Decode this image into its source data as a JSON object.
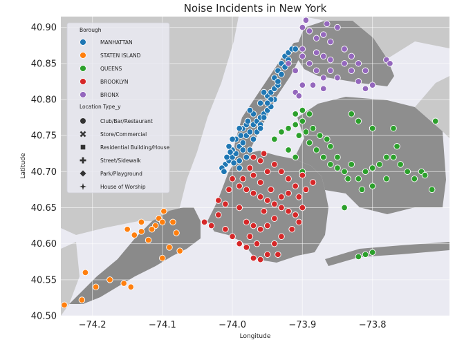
{
  "chart_data": {
    "type": "scatter",
    "title": "Noise Incidents in New York",
    "xlabel": "Longitude",
    "ylabel": "Latitude",
    "xlim": [
      -74.245,
      -73.69
    ],
    "ylim": [
      40.5,
      40.915
    ],
    "x_ticks": [
      -74.2,
      -74.1,
      -74.0,
      -73.9,
      -73.8
    ],
    "x_tick_labels": [
      "−74.2",
      "−74.1",
      "−74.0",
      "−73.9",
      "−73.8"
    ],
    "y_ticks": [
      40.5,
      40.55,
      40.6,
      40.65,
      40.7,
      40.75,
      40.8,
      40.85,
      40.9
    ],
    "y_tick_labels": [
      "40.50",
      "40.55",
      "40.60",
      "40.65",
      "40.70",
      "40.75",
      "40.80",
      "40.85",
      "40.90"
    ],
    "grid": true,
    "background": "map of New York City boroughs",
    "legend": {
      "placement": "top-left",
      "hue_title": "Borough",
      "style_title": "Location Type_y",
      "hue_items": [
        {
          "label": "MANHATTAN",
          "color": "#1f77b4"
        },
        {
          "label": "STATEN ISLAND",
          "color": "#ff7f0e"
        },
        {
          "label": "QUEENS",
          "color": "#2ca02c"
        },
        {
          "label": "BROOKLYN",
          "color": "#d62728"
        },
        {
          "label": "BRONX",
          "color": "#9467bd"
        }
      ],
      "style_items": [
        {
          "label": "Club/Bar/Restaurant",
          "marker": "circle"
        },
        {
          "label": "Store/Commercial",
          "marker": "x"
        },
        {
          "label": "Residential Building/House",
          "marker": "square"
        },
        {
          "label": "Street/Sidewalk",
          "marker": "plus"
        },
        {
          "label": "Park/Playground",
          "marker": "diamond"
        },
        {
          "label": "House of Worship",
          "marker": "star"
        }
      ]
    },
    "series": [
      {
        "name": "MANHATTAN",
        "color": "#1f77b4",
        "points": [
          [
            -74.01,
            40.71
          ],
          [
            -74.005,
            40.715
          ],
          [
            -74.0,
            40.72
          ],
          [
            -73.995,
            40.725
          ],
          [
            -74.008,
            40.72
          ],
          [
            -74.0,
            40.73
          ],
          [
            -73.99,
            40.735
          ],
          [
            -73.985,
            40.74
          ],
          [
            -73.995,
            40.745
          ],
          [
            -73.98,
            40.75
          ],
          [
            -73.975,
            40.755
          ],
          [
            -73.985,
            40.76
          ],
          [
            -73.97,
            40.765
          ],
          [
            -73.965,
            40.77
          ],
          [
            -73.96,
            40.775
          ],
          [
            -73.955,
            40.78
          ],
          [
            -73.95,
            40.785
          ],
          [
            -73.945,
            40.79
          ],
          [
            -73.94,
            40.8
          ],
          [
            -73.95,
            40.805
          ],
          [
            -73.945,
            40.81
          ],
          [
            -73.94,
            40.815
          ],
          [
            -73.935,
            40.82
          ],
          [
            -73.94,
            40.83
          ],
          [
            -73.935,
            40.84
          ],
          [
            -73.93,
            40.85
          ],
          [
            -73.925,
            40.86
          ],
          [
            -73.92,
            40.865
          ],
          [
            -73.915,
            40.87
          ],
          [
            -73.91,
            40.87
          ],
          [
            -74.015,
            40.705
          ],
          [
            -74.012,
            40.7
          ],
          [
            -73.99,
            40.715
          ],
          [
            -73.98,
            40.72
          ],
          [
            -73.975,
            40.73
          ],
          [
            -73.98,
            40.765
          ],
          [
            -73.99,
            40.76
          ],
          [
            -73.96,
            40.765
          ],
          [
            -73.955,
            40.775
          ],
          [
            -73.97,
            40.78
          ],
          [
            -73.975,
            40.785
          ],
          [
            -73.96,
            40.795
          ],
          [
            -73.945,
            40.8
          ],
          [
            -73.955,
            40.81
          ],
          [
            -73.93,
            40.835
          ],
          [
            -73.925,
            40.845
          ],
          [
            -73.92,
            40.855
          ],
          [
            -74.0,
            40.745
          ],
          [
            -74.005,
            40.735
          ],
          [
            -73.985,
            40.73
          ],
          [
            -73.97,
            40.745
          ],
          [
            -73.965,
            40.755
          ],
          [
            -73.96,
            40.76
          ],
          [
            -73.99,
            40.705
          ],
          [
            -73.998,
            40.712
          ],
          [
            -74.003,
            40.727
          ],
          [
            -73.988,
            40.75
          ],
          [
            -73.978,
            40.77
          ],
          [
            -73.95,
            40.795
          ],
          [
            -73.935,
            40.825
          ]
        ]
      },
      {
        "name": "STATEN ISLAND",
        "color": "#ff7f0e",
        "points": [
          [
            -74.24,
            40.515
          ],
          [
            -74.215,
            40.522
          ],
          [
            -74.195,
            40.54
          ],
          [
            -74.175,
            40.55
          ],
          [
            -74.155,
            40.545
          ],
          [
            -74.145,
            40.54
          ],
          [
            -74.21,
            40.56
          ],
          [
            -74.14,
            40.612
          ],
          [
            -74.13,
            40.617
          ],
          [
            -74.11,
            40.625
          ],
          [
            -74.105,
            40.635
          ],
          [
            -74.1,
            40.63
          ],
          [
            -74.085,
            40.63
          ],
          [
            -74.08,
            40.615
          ],
          [
            -74.09,
            40.595
          ],
          [
            -74.1,
            40.58
          ],
          [
            -74.115,
            40.62
          ],
          [
            -74.12,
            40.605
          ],
          [
            -74.13,
            40.63
          ],
          [
            -74.098,
            40.645
          ],
          [
            -74.075,
            40.59
          ],
          [
            -74.15,
            40.62
          ]
        ]
      },
      {
        "name": "QUEENS",
        "color": "#2ca02c",
        "points": [
          [
            -73.94,
            40.745
          ],
          [
            -73.93,
            40.755
          ],
          [
            -73.92,
            40.76
          ],
          [
            -73.91,
            40.765
          ],
          [
            -73.9,
            40.77
          ],
          [
            -73.905,
            40.75
          ],
          [
            -73.895,
            40.755
          ],
          [
            -73.885,
            40.76
          ],
          [
            -73.875,
            40.75
          ],
          [
            -73.865,
            40.745
          ],
          [
            -73.88,
            40.73
          ],
          [
            -73.87,
            40.72
          ],
          [
            -73.86,
            40.71
          ],
          [
            -73.85,
            40.705
          ],
          [
            -73.84,
            40.7
          ],
          [
            -73.83,
            40.71
          ],
          [
            -73.82,
            40.69
          ],
          [
            -73.81,
            40.7
          ],
          [
            -73.8,
            40.705
          ],
          [
            -73.79,
            40.71
          ],
          [
            -73.78,
            40.69
          ],
          [
            -73.77,
            40.72
          ],
          [
            -73.76,
            40.71
          ],
          [
            -73.75,
            40.7
          ],
          [
            -73.74,
            40.69
          ],
          [
            -73.73,
            40.7
          ],
          [
            -73.8,
            40.76
          ],
          [
            -73.82,
            40.77
          ],
          [
            -73.77,
            40.76
          ],
          [
            -73.71,
            40.77
          ],
          [
            -73.83,
            40.78
          ],
          [
            -73.84,
            40.65
          ],
          [
            -73.81,
            40.585
          ],
          [
            -73.8,
            40.588
          ],
          [
            -73.82,
            40.582
          ],
          [
            -73.715,
            40.675
          ],
          [
            -73.9,
            40.7
          ],
          [
            -73.91,
            40.72
          ],
          [
            -73.92,
            40.73
          ],
          [
            -73.89,
            40.74
          ],
          [
            -73.86,
            40.735
          ],
          [
            -73.85,
            40.72
          ],
          [
            -73.835,
            40.69
          ],
          [
            -73.815,
            40.675
          ],
          [
            -73.8,
            40.68
          ],
          [
            -73.78,
            40.72
          ],
          [
            -73.765,
            40.735
          ],
          [
            -73.89,
            40.78
          ],
          [
            -73.9,
            40.785
          ],
          [
            -73.91,
            40.78
          ],
          [
            -73.725,
            40.695
          ]
        ]
      },
      {
        "name": "BROOKLYN",
        "color": "#d62728",
        "points": [
          [
            -74.0,
            40.69
          ],
          [
            -73.99,
            40.68
          ],
          [
            -73.98,
            40.675
          ],
          [
            -73.97,
            40.67
          ],
          [
            -73.96,
            40.665
          ],
          [
            -73.95,
            40.66
          ],
          [
            -73.94,
            40.655
          ],
          [
            -73.93,
            40.65
          ],
          [
            -73.92,
            40.645
          ],
          [
            -73.91,
            40.64
          ],
          [
            -73.9,
            40.65
          ],
          [
            -73.95,
            40.7
          ],
          [
            -73.94,
            40.71
          ],
          [
            -73.96,
            40.715
          ],
          [
            -73.97,
            40.72
          ],
          [
            -73.955,
            40.725
          ],
          [
            -73.93,
            40.7
          ],
          [
            -73.92,
            40.69
          ],
          [
            -73.91,
            40.68
          ],
          [
            -74.02,
            40.64
          ],
          [
            -74.03,
            40.625
          ],
          [
            -74.01,
            40.62
          ],
          [
            -74.0,
            40.61
          ],
          [
            -73.99,
            40.6
          ],
          [
            -73.98,
            40.595
          ],
          [
            -73.97,
            40.58
          ],
          [
            -73.96,
            40.578
          ],
          [
            -73.95,
            40.585
          ],
          [
            -73.94,
            40.6
          ],
          [
            -73.93,
            40.61
          ],
          [
            -74.04,
            40.63
          ],
          [
            -74.02,
            40.66
          ],
          [
            -74.01,
            40.655
          ],
          [
            -73.99,
            40.65
          ],
          [
            -73.98,
            40.63
          ],
          [
            -73.97,
            40.625
          ],
          [
            -73.96,
            40.62
          ],
          [
            -73.95,
            40.625
          ],
          [
            -73.94,
            40.635
          ],
          [
            -73.93,
            40.665
          ],
          [
            -73.92,
            40.67
          ],
          [
            -73.905,
            40.665
          ],
          [
            -73.895,
            40.675
          ],
          [
            -73.885,
            40.685
          ],
          [
            -73.9,
            40.695
          ],
          [
            -73.96,
            40.685
          ],
          [
            -73.97,
            40.695
          ],
          [
            -73.985,
            40.69
          ],
          [
            -73.975,
            40.705
          ],
          [
            -73.945,
            40.675
          ],
          [
            -74.005,
            40.675
          ],
          [
            -73.955,
            40.645
          ],
          [
            -73.965,
            40.6
          ],
          [
            -73.975,
            40.61
          ],
          [
            -73.935,
            40.585
          ],
          [
            -73.915,
            40.62
          ],
          [
            -73.905,
            40.63
          ]
        ]
      },
      {
        "name": "BRONX",
        "color": "#9467bd",
        "points": [
          [
            -73.9,
            40.9
          ],
          [
            -73.89,
            40.895
          ],
          [
            -73.88,
            40.885
          ],
          [
            -73.87,
            40.89
          ],
          [
            -73.86,
            40.88
          ],
          [
            -73.85,
            40.9
          ],
          [
            -73.84,
            40.87
          ],
          [
            -73.83,
            40.86
          ],
          [
            -73.82,
            40.85
          ],
          [
            -73.81,
            40.84
          ],
          [
            -73.8,
            40.82
          ],
          [
            -73.9,
            40.86
          ],
          [
            -73.89,
            40.85
          ],
          [
            -73.88,
            40.84
          ],
          [
            -73.87,
            40.83
          ],
          [
            -73.86,
            40.84
          ],
          [
            -73.85,
            40.83
          ],
          [
            -73.9,
            40.82
          ],
          [
            -73.91,
            40.84
          ],
          [
            -73.92,
            40.85
          ],
          [
            -73.9,
            40.87
          ],
          [
            -73.88,
            40.865
          ],
          [
            -73.87,
            40.86
          ],
          [
            -73.86,
            40.855
          ],
          [
            -73.84,
            40.85
          ],
          [
            -73.83,
            40.84
          ],
          [
            -73.78,
            40.855
          ],
          [
            -73.775,
            40.85
          ],
          [
            -73.895,
            40.91
          ],
          [
            -73.865,
            40.905
          ],
          [
            -73.91,
            40.81
          ],
          [
            -73.905,
            40.805
          ],
          [
            -73.885,
            40.82
          ],
          [
            -73.87,
            40.815
          ],
          [
            -73.81,
            40.815
          ],
          [
            -73.82,
            40.825
          ]
        ]
      }
    ]
  }
}
